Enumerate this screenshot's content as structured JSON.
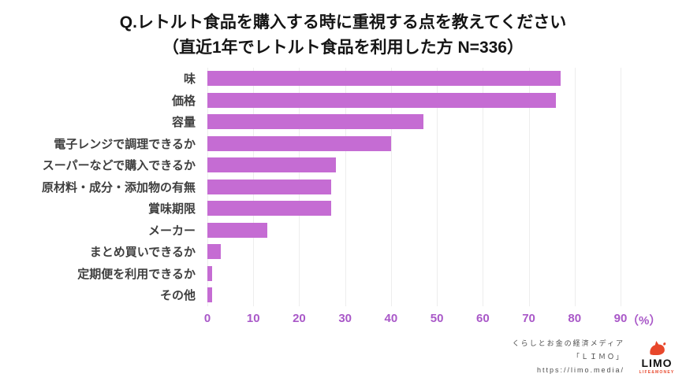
{
  "header": {
    "title": "Q.レトルト食品を購入する時に重視する点を教えてください",
    "subtitle": "（直近1年でレトルト食品を利用した方 N=336）"
  },
  "chart_data": {
    "type": "bar",
    "orientation": "horizontal",
    "title": "Q.レトルト食品を購入する時に重視する点を教えてください（直近1年でレトルト食品を利用した方 N=336）",
    "categories": [
      "味",
      "価格",
      "容量",
      "電子レンジで調理できるか",
      "スーパーなどで購入できるか",
      "原材料・成分・添加物の有無",
      "賞味期限",
      "メーカー",
      "まとめ買いできるか",
      "定期便を利用できるか",
      "その他"
    ],
    "values": [
      77,
      76,
      47,
      40,
      28,
      27,
      27,
      13,
      3,
      1,
      1
    ],
    "xlim": [
      0,
      90
    ],
    "xticks": [
      0,
      10,
      20,
      30,
      40,
      50,
      60,
      70,
      80,
      90
    ],
    "unit_label": "（%）",
    "grid": true,
    "legend": "none",
    "bar_color": "#c56cd3",
    "tick_color": "#a958c8"
  },
  "footer": {
    "line1": "くらしとお金の経済メディア",
    "line2": "「ＬＩＭＯ」",
    "line3": "https://limo.media/",
    "logo_name": "LIMO",
    "logo_sub": "LIFE&MONEY",
    "logo_color": "#e8472b"
  }
}
